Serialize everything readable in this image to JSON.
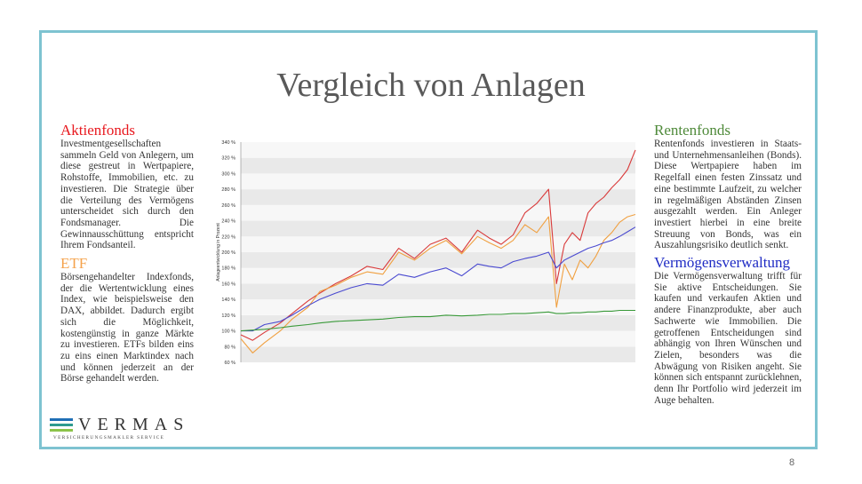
{
  "slide": {
    "title": "Vergleich von Anlagen",
    "page_number": "8"
  },
  "sections": {
    "aktienfonds": {
      "heading": "Aktienfonds",
      "color": "#e8191f",
      "text": "Investmentgesellschaften sammeln Geld von Anlegern, um diese gestreut in Wertpapiere, Rohstoffe, Immobilien, etc. zu investieren. Die Strategie über die Verteilung des Vermögens unterscheidet sich durch den Fondsmanager. Die Gewinnausschüttung entspricht Ihrem Fondsanteil."
    },
    "etf": {
      "heading": "ETF",
      "color": "#f5a24b",
      "text": "Börsengehandelter Indexfonds, der die Wertentwicklung eines Index, wie beispielsweise den DAX, abbildet. Dadurch ergibt sich die Möglichkeit, kostengünstig in ganze Märkte zu investieren. ETFs bilden eins zu eins einen Marktindex nach und können jederzeit an der Börse gehandelt werden."
    },
    "rentenfonds": {
      "heading": "Rentenfonds",
      "color": "#4f8a3a",
      "text": "Rentenfonds investieren in Staats- und Unternehmensanleihen (Bonds). Diese Wertpapiere haben im Regelfall einen festen Zinssatz und eine bestimmte Laufzeit, zu welcher in regelmäßigen Abständen Zinsen ausgezahlt werden. Ein Anleger investiert hierbei in eine breite Streuung von Bonds, was ein Auszahlungsrisiko deutlich senkt."
    },
    "vermoegensverwaltung": {
      "heading": "Vermögensverwaltung",
      "color": "#1f2bc4",
      "text": "Die Vermögensverwaltung trifft für Sie aktive Entscheidungen. Sie kaufen und verkaufen Aktien und andere Finanzprodukte, aber auch Sachwerte wie Immobilien. Die getroffenen Entscheidungen sind abhängig von Ihren Wünschen und Zielen, besonders was die Abwägung von Risiken angeht. Sie können sich entspannt zurücklehnen, denn Ihr Portfolio wird jederzeit im Auge behalten."
    }
  },
  "logo": {
    "name": "VERMAS",
    "subtitle": "VERSICHERUNGSMAKLER SERVICE",
    "colors": [
      "#1f6fb5",
      "#2e9b8f",
      "#8cc34a"
    ]
  },
  "chart_data": {
    "type": "line",
    "ylabel": "Anlageentwicklung in Prozent",
    "ylim": [
      60,
      340
    ],
    "yticks": [
      "60 %",
      "80 %",
      "100 %",
      "120 %",
      "140 %",
      "160 %",
      "180 %",
      "200 %",
      "220 %",
      "240 %",
      "260 %",
      "280 %",
      "300 %",
      "320 %",
      "340 %"
    ],
    "grid": "horizontal bands",
    "x": [
      0,
      0.03,
      0.06,
      0.1,
      0.13,
      0.17,
      0.2,
      0.24,
      0.28,
      0.32,
      0.36,
      0.4,
      0.44,
      0.48,
      0.52,
      0.56,
      0.6,
      0.63,
      0.66,
      0.69,
      0.72,
      0.75,
      0.78,
      0.8,
      0.82,
      0.84,
      0.86,
      0.88,
      0.9,
      0.92,
      0.94,
      0.96,
      0.98,
      1.0
    ],
    "series": [
      {
        "color": "#d93a3a",
        "values": [
          95,
          88,
          98,
          110,
          122,
          138,
          148,
          160,
          170,
          182,
          178,
          205,
          192,
          210,
          218,
          200,
          228,
          218,
          210,
          222,
          250,
          262,
          280,
          160,
          210,
          225,
          215,
          250,
          262,
          270,
          282,
          292,
          305,
          330
        ]
      },
      {
        "color": "#f0a040",
        "values": [
          90,
          72,
          85,
          100,
          115,
          130,
          150,
          158,
          168,
          175,
          172,
          200,
          190,
          205,
          215,
          198,
          220,
          212,
          205,
          215,
          235,
          225,
          245,
          130,
          185,
          165,
          190,
          180,
          195,
          215,
          225,
          238,
          245,
          248
        ]
      },
      {
        "color": "#4a4ad0",
        "values": [
          100,
          100,
          108,
          112,
          120,
          132,
          140,
          148,
          155,
          160,
          158,
          172,
          168,
          175,
          180,
          170,
          185,
          182,
          180,
          188,
          192,
          195,
          200,
          180,
          190,
          195,
          200,
          205,
          208,
          212,
          215,
          220,
          226,
          232
        ]
      },
      {
        "color": "#3a9a3a",
        "values": [
          100,
          101,
          102,
          104,
          106,
          108,
          110,
          112,
          113,
          114,
          115,
          117,
          118,
          118,
          120,
          119,
          120,
          121,
          121,
          122,
          122,
          123,
          124,
          122,
          122,
          123,
          123,
          124,
          124,
          125,
          125,
          126,
          126,
          126
        ]
      }
    ]
  }
}
